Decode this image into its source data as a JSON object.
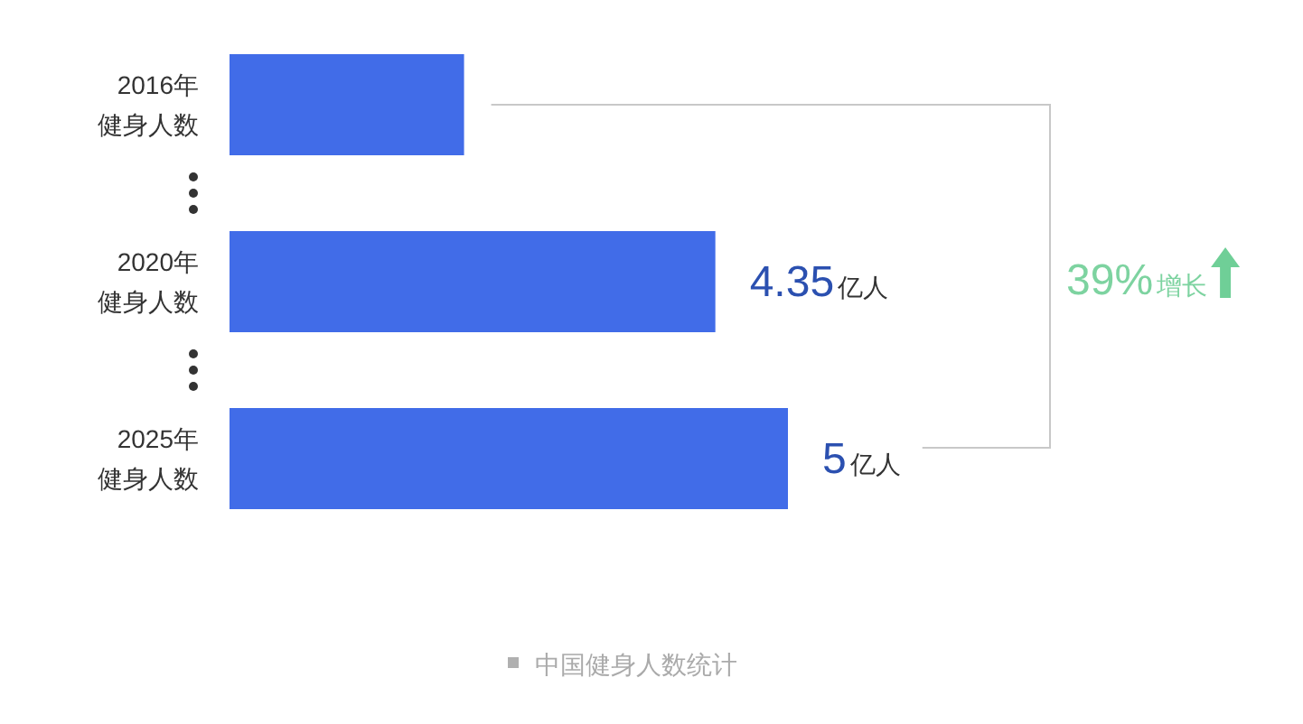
{
  "chart_data": {
    "type": "bar",
    "orientation": "horizontal",
    "categories": [
      "2016年健身人数",
      "2020年健身人数",
      "2025年健身人数"
    ],
    "values": [
      2.1,
      4.35,
      5
    ],
    "value_labels": [
      null,
      "4.35亿人",
      "5亿人"
    ],
    "color": "#416ce8",
    "annotations": [
      "39%增长",
      "中国健身人数统计"
    ]
  }
}
